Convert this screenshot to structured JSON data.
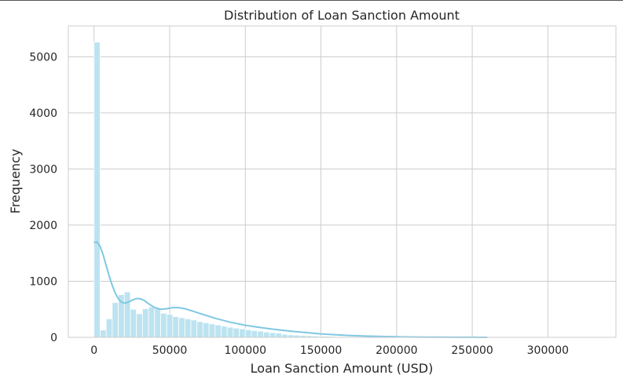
{
  "chart_data": {
    "type": "bar",
    "title": "Distribution of Loan Sanction Amount",
    "xlabel": "Loan Sanction Amount (USD)",
    "ylabel": "Frequency",
    "xlim": [
      -17000,
      345000
    ],
    "ylim": [
      0,
      5550
    ],
    "x_ticks": [
      0,
      50000,
      100000,
      150000,
      200000,
      250000,
      300000
    ],
    "y_ticks": [
      0,
      1000,
      2000,
      3000,
      4000,
      5000
    ],
    "grid": true,
    "bar_color": "#bde3f0",
    "bar_edge_color": "#ffffff",
    "kde_color": "#7ec8e3",
    "bin_width": 4000,
    "bin_start": 0,
    "histogram_counts": [
      5260,
      130,
      330,
      620,
      760,
      810,
      500,
      420,
      510,
      540,
      510,
      430,
      410,
      370,
      350,
      330,
      310,
      280,
      260,
      240,
      220,
      200,
      180,
      165,
      150,
      135,
      120,
      110,
      95,
      85,
      75,
      55,
      45,
      40,
      35,
      30,
      25,
      20,
      18,
      15,
      12,
      10,
      9,
      8,
      7,
      6,
      5,
      4,
      4,
      3,
      3,
      2,
      2,
      2,
      2,
      1,
      1,
      1,
      1,
      1,
      1,
      1,
      1,
      1,
      1,
      1,
      1,
      1,
      1,
      1,
      1,
      1,
      1,
      1,
      1,
      1,
      1,
      1,
      1,
      1,
      1
    ],
    "kde": {
      "x": [
        0,
        2000,
        4000,
        6000,
        8000,
        10000,
        12000,
        14000,
        16000,
        18000,
        20000,
        22000,
        25000,
        28000,
        30000,
        33000,
        36000,
        40000,
        44000,
        48000,
        52000,
        56000,
        60000,
        65000,
        70000,
        80000,
        90000,
        100000,
        110000,
        120000,
        130000,
        140000,
        150000,
        160000,
        170000,
        180000,
        190000,
        200000,
        210000,
        220000,
        230000,
        240000,
        250000,
        260000
      ],
      "y": [
        1690,
        1700,
        1620,
        1470,
        1280,
        1090,
        930,
        790,
        690,
        630,
        610,
        620,
        660,
        690,
        690,
        660,
        600,
        530,
        500,
        510,
        530,
        530,
        510,
        470,
        425,
        340,
        270,
        215,
        175,
        140,
        110,
        85,
        62,
        45,
        32,
        22,
        15,
        10,
        6,
        4,
        3,
        2,
        1,
        0
      ]
    }
  }
}
